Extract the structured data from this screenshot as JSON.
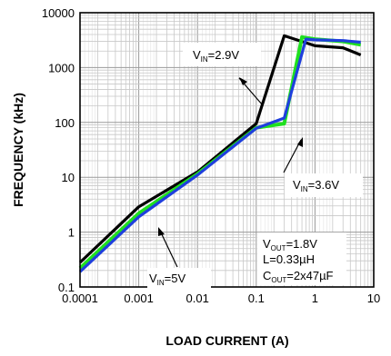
{
  "chart_data": {
    "type": "line",
    "xlabel": "LOAD CURRENT (A)",
    "ylabel": "FREQUENCY (kHz)",
    "xscale": "log",
    "yscale": "log",
    "xlim": [
      0.0001,
      10
    ],
    "ylim": [
      0.1,
      10000
    ],
    "grid": true,
    "x_tick_labels": [
      "0.0001",
      "0.001",
      "0.01",
      "0.1",
      "1",
      "10"
    ],
    "y_tick_labels": [
      "0.1",
      "1",
      "10",
      "100",
      "1000",
      "10000"
    ],
    "series": [
      {
        "name": "VIN=2.9V",
        "color": "#000000",
        "x": [
          0.0001,
          0.001,
          0.01,
          0.1,
          0.3,
          1,
          3,
          6
        ],
        "y": [
          0.28,
          2.9,
          12.5,
          95,
          3800,
          2500,
          2300,
          1700
        ]
      },
      {
        "name": "VIN=3.6V",
        "color": "#1fe01f",
        "x": [
          0.0001,
          0.001,
          0.01,
          0.1,
          0.3,
          0.6,
          1,
          3,
          6
        ],
        "y": [
          0.22,
          2.2,
          11.5,
          80,
          95,
          3600,
          3300,
          3000,
          2600
        ]
      },
      {
        "name": "VIN=5V",
        "color": "#1f3fdd",
        "x": [
          0.0001,
          0.001,
          0.01,
          0.1,
          0.3,
          0.7,
          1,
          3,
          6
        ],
        "y": [
          0.19,
          1.9,
          11,
          78,
          120,
          3300,
          3200,
          3100,
          2900
        ]
      }
    ],
    "annotations": [
      {
        "main": "V",
        "sub": "IN",
        "rest": "=2.9V"
      },
      {
        "main": "V",
        "sub": "IN",
        "rest": "=3.6V"
      },
      {
        "main": "V",
        "sub": "IN",
        "rest": "=5V"
      }
    ],
    "conditions": [
      {
        "main": "V",
        "sub": "OUT",
        "rest": "=1.8V"
      },
      {
        "main": "L=0.33µH",
        "sub": "",
        "rest": ""
      },
      {
        "main": "C",
        "sub": "OUT",
        "rest": "=2x47µF"
      }
    ]
  }
}
